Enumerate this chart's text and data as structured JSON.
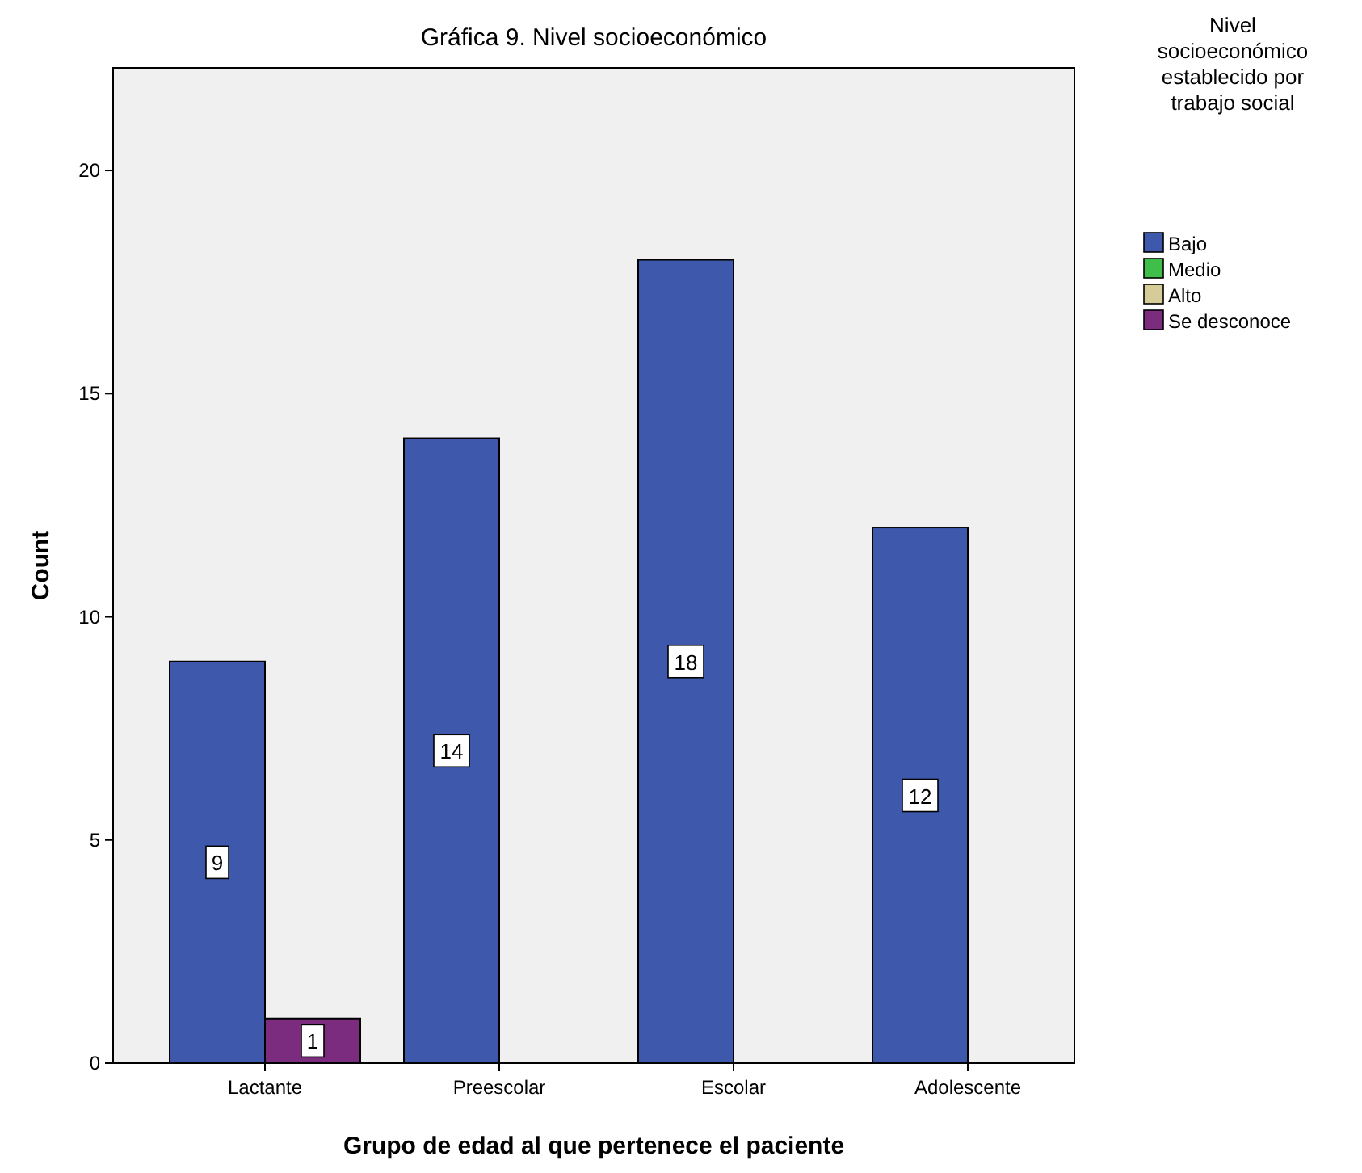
{
  "chart_data": {
    "type": "bar",
    "title": "Gráfica 9. Nivel socioeconómico",
    "xlabel": "Grupo de edad al que pertenece el paciente",
    "ylabel": "Count",
    "legend_title": "Nivel socioeconómico establecido por trabajo social",
    "categories": [
      "Lactante",
      "Preescolar",
      "Escolar",
      "Adolescente"
    ],
    "series": [
      {
        "name": "Bajo",
        "color": "#3e58ac",
        "values": [
          9,
          14,
          18,
          12
        ]
      },
      {
        "name": "Medio",
        "color": "#3fbf4a",
        "values": [
          null,
          null,
          null,
          null
        ]
      },
      {
        "name": "Alto",
        "color": "#d6cc98",
        "values": [
          null,
          null,
          null,
          null
        ]
      },
      {
        "name": "Se desconoce",
        "color": "#7b2c7e",
        "values": [
          1,
          null,
          null,
          null
        ]
      }
    ],
    "ylim": [
      0,
      22.3
    ],
    "yticks": [
      0,
      5,
      10,
      15,
      20
    ],
    "data_labels": true,
    "legend": "top right",
    "grid": false
  }
}
